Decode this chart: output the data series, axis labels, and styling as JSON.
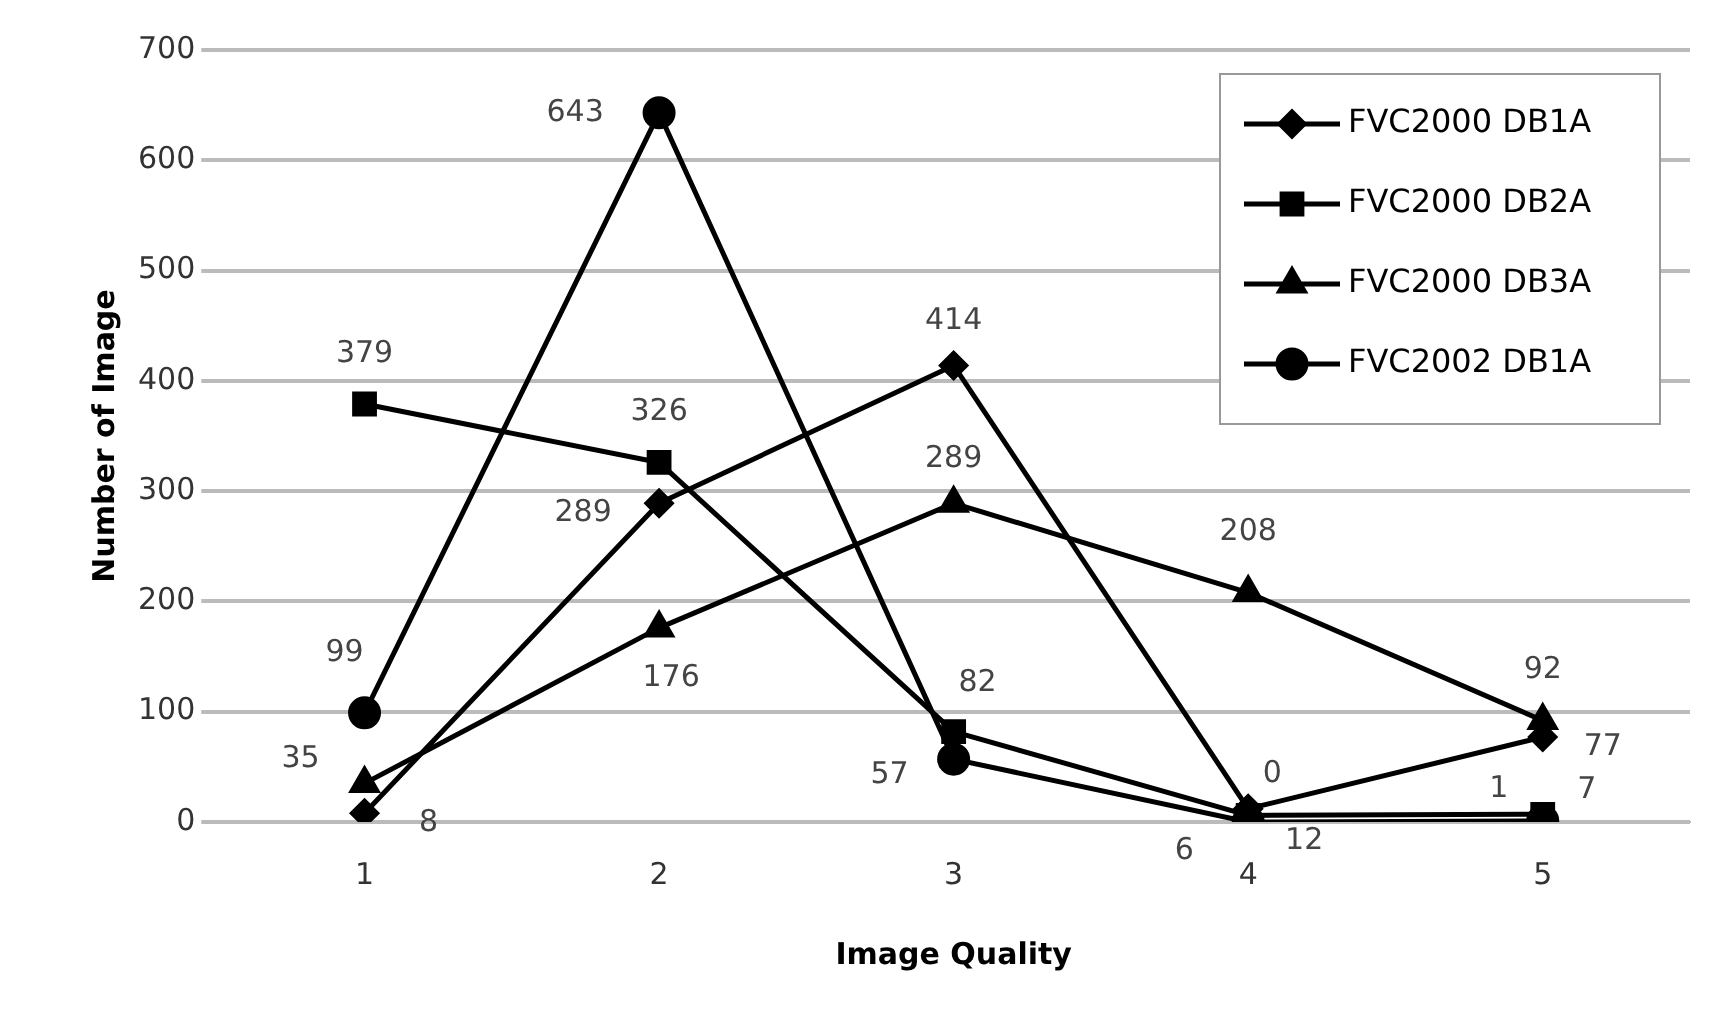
{
  "chart_data": {
    "type": "line",
    "xlabel": "Image Quality",
    "ylabel": "Number of Image",
    "categories": [
      "1",
      "2",
      "3",
      "4",
      "5"
    ],
    "series": [
      {
        "name": "FVC2000 DB1A",
        "color": "#000000",
        "marker": "diamond",
        "values": [
          8,
          289,
          414,
          12,
          77
        ]
      },
      {
        "name": "FVC2000 DB2A",
        "color": "#000000",
        "marker": "square",
        "values": [
          379,
          326,
          82,
          6,
          7
        ]
      },
      {
        "name": "FVC2000 DB3A",
        "color": "#000000",
        "marker": "triangle",
        "values": [
          35,
          176,
          289,
          208,
          92
        ]
      },
      {
        "name": "FVC2002 DB1A",
        "color": "#000000",
        "marker": "circle",
        "values": [
          99,
          643,
          57,
          0,
          1
        ]
      }
    ],
    "ylim": [
      0,
      700
    ],
    "yticks": [
      0,
      100,
      200,
      300,
      400,
      500,
      600,
      700
    ],
    "grid": "y",
    "legend": "top right",
    "data_labels": true,
    "line_style": "solid"
  }
}
